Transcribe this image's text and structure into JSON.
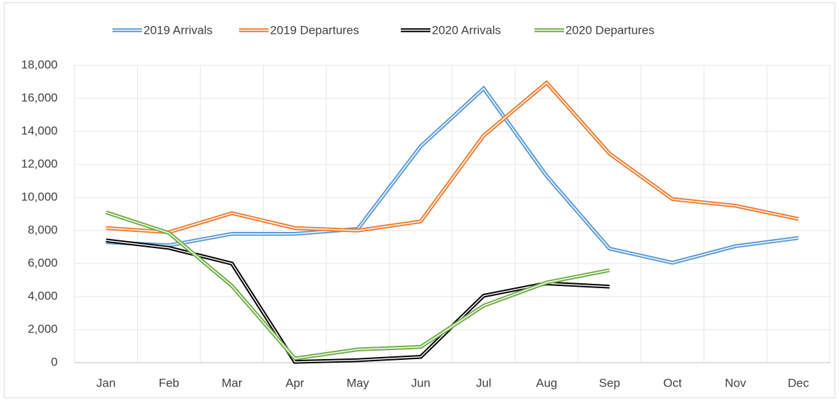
{
  "chart_data": {
    "type": "line",
    "categories": [
      "Jan",
      "Feb",
      "Mar",
      "Apr",
      "May",
      "Jun",
      "Jul",
      "Aug",
      "Sep",
      "Oct",
      "Nov",
      "Dec"
    ],
    "series": [
      {
        "name": "2019 Arrivals",
        "color": "#5b9bd5",
        "values": [
          7300,
          7100,
          7800,
          7800,
          8100,
          13100,
          16600,
          11300,
          6900,
          6050,
          7050,
          7550
        ]
      },
      {
        "name": "2019 Departures",
        "color": "#ed7d31",
        "values": [
          8150,
          7900,
          9050,
          8150,
          8000,
          8550,
          13750,
          16950,
          12650,
          9900,
          9500,
          8700
        ]
      },
      {
        "name": "2020 Arrivals",
        "color": "#000000",
        "values": [
          7400,
          6950,
          6000,
          50,
          150,
          350,
          4050,
          4800,
          4600,
          null,
          null,
          null
        ]
      },
      {
        "name": "2020 Departures",
        "color": "#70ad47",
        "values": [
          9100,
          7850,
          4650,
          250,
          800,
          950,
          3450,
          4850,
          5600,
          null,
          null,
          null
        ]
      }
    ],
    "ylim": [
      0,
      18000
    ],
    "yticks": [
      0,
      {
        "value": 2000,
        "label": "2,000"
      },
      {
        "value": 4000,
        "label": "4,000"
      },
      {
        "value": 6000,
        "label": "6,000"
      },
      {
        "value": 8000,
        "label": "8,000"
      },
      {
        "value": 10000,
        "label": "10,000"
      },
      {
        "value": 12000,
        "label": "12,000"
      },
      {
        "value": 14000,
        "label": "14,000"
      },
      {
        "value": 16000,
        "label": "16,000"
      },
      {
        "value": 18000,
        "label": "18,000"
      }
    ],
    "grid": true,
    "legend": "top"
  }
}
